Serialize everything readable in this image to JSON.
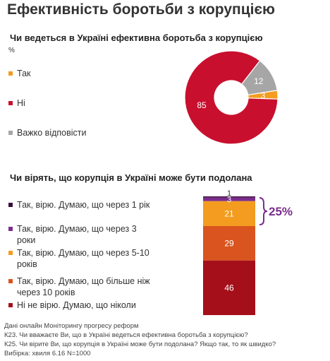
{
  "title": "Ефективність боротьби з корупцією",
  "chart_data": [
    {
      "type": "pie",
      "title": "Чи ведеться в Україні  ефективна  боротьба з корупцією",
      "unit": "%",
      "categories": [
        "Так",
        "Ні",
        "Важко відповісти"
      ],
      "values": [
        3,
        85,
        12
      ],
      "colors": [
        "#f39c1f",
        "#c8102e",
        "#a6a6a6"
      ],
      "donut": true
    },
    {
      "type": "bar",
      "stacked": true,
      "title": "Чи вірять, що корупція  в Україні  може  бути подолана",
      "categories": [
        "Так, вірю. Думаю, що через 1 рік",
        "Так, вірю. Думаю, що через 3 роки",
        "Так, вірю. Думаю, що через 5-10 років",
        "Так, вірю. Думаю, що більше ніж через 10 років",
        "Ні не вірю. Думаю, що ніколи"
      ],
      "legend_lines": [
        [
          "Так, вірю. Думаю, що через 1 рік"
        ],
        [
          "Так, вірю. Думаю, що через 3",
          "роки"
        ],
        [
          "Так, вірю. Думаю, що через 5-10",
          "років"
        ],
        [
          "Так, вірю. Думаю, що більше ніж",
          "через 10 років"
        ],
        [
          "Ні не вірю. Думаю, що ніколи"
        ]
      ],
      "values": [
        1,
        3,
        21,
        29,
        46
      ],
      "colors": [
        "#3d0a3d",
        "#7b2d8e",
        "#f39c1f",
        "#d9541e",
        "#a50f1a"
      ],
      "annotation": "25%",
      "annotation_color": "#7b2d8e"
    }
  ],
  "footer": [
    "Дані онлайн Моніторингу прогресу реформ",
    "К23. Чи вважаєте Ви, що в Україні ведеться ефективна боротьба з корупцією?",
    "К25. Чи вірите Ви, що корупція в Україні може бути подолана? Якщо так, то як швидко?",
    "Вибірка: хвиля 6.16 N=1000"
  ]
}
